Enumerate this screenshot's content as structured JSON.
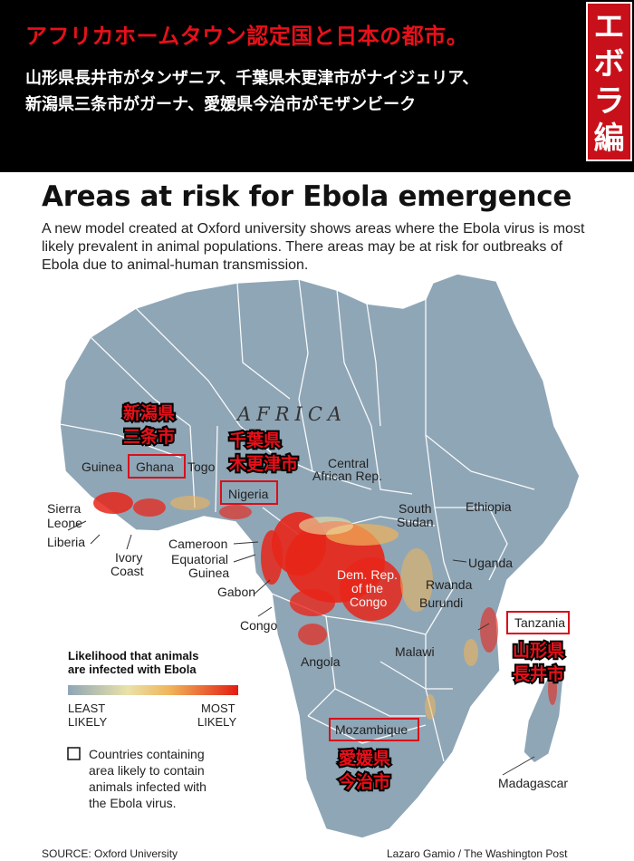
{
  "banner": {
    "title": "アフリカホームタウン認定国と日本の都市。",
    "subtitle_line1": "山形県長井市がタンザニア、千葉県木更津市がナイジェリア、",
    "subtitle_line2": "新潟県三条市がガーナ、愛媛県今治市がモザンビーク",
    "side_tag": "エボラ編"
  },
  "figure": {
    "title": "Areas at risk for Ebola emergence",
    "description": "A new model created at Oxford university shows areas where the Ebola virus is most likely prevalent in animal populations. There areas may be at risk for outbreaks of Ebola due to animal-human transmission.",
    "continent_label": "AFRICA",
    "countries": {
      "guinea": "Guinea",
      "ghana": "Ghana",
      "togo": "Togo",
      "sierra_leone_1": "Sierra",
      "sierra_leone_2": "Leone",
      "liberia": "Liberia",
      "ivory_coast_1": "Ivory",
      "ivory_coast_2": "Coast",
      "nigeria": "Nigeria",
      "car_1": "Central",
      "car_2": "African Rep.",
      "south_sudan_1": "South",
      "south_sudan_2": "Sudan",
      "ethiopia": "Ethiopia",
      "cameroon": "Cameroon",
      "eq_guinea_1": "Equatorial",
      "eq_guinea_2": "Guinea",
      "gabon": "Gabon",
      "congo": "Congo",
      "drc_1": "Dem. Rep.",
      "drc_2": "of the",
      "drc_3": "Congo",
      "uganda": "Uganda",
      "rwanda": "Rwanda",
      "burundi": "Burundi",
      "tanzania": "Tanzania",
      "angola": "Angola",
      "malawi": "Malawi",
      "mozambique": "Mozambique",
      "madagascar": "Madagascar"
    },
    "annotations": {
      "niigata_1": "新潟県",
      "niigata_2": "三条市",
      "chiba_1": "千葉県",
      "chiba_2": "木更津市",
      "yamagata_1": "山形県",
      "yamagata_2": "長井市",
      "ehime_1": "愛媛県",
      "ehime_2": "今治市"
    },
    "legend": {
      "title_1": "Likelihood that animals",
      "title_2": "are infected with Ebola",
      "least_1": "LEAST",
      "least_2": "LIKELY",
      "most_1": "MOST",
      "most_2": "LIKELY",
      "note_1": "Countries containing",
      "note_2": "area likely to contain",
      "note_3": "animals infected with",
      "note_4": "the Ebola virus."
    },
    "source": "SOURCE: Oxford University",
    "credit": "Lazaro Gamio / The Washington Post"
  },
  "colors": {
    "land": "#8fa6b6",
    "border": "#ffffff",
    "hotspot": "#e8261a",
    "highlight_box": "#d8101a",
    "annotation_text": "#e8101a",
    "banner_bg": "#000000",
    "side_tag_bg": "#c8101a"
  }
}
